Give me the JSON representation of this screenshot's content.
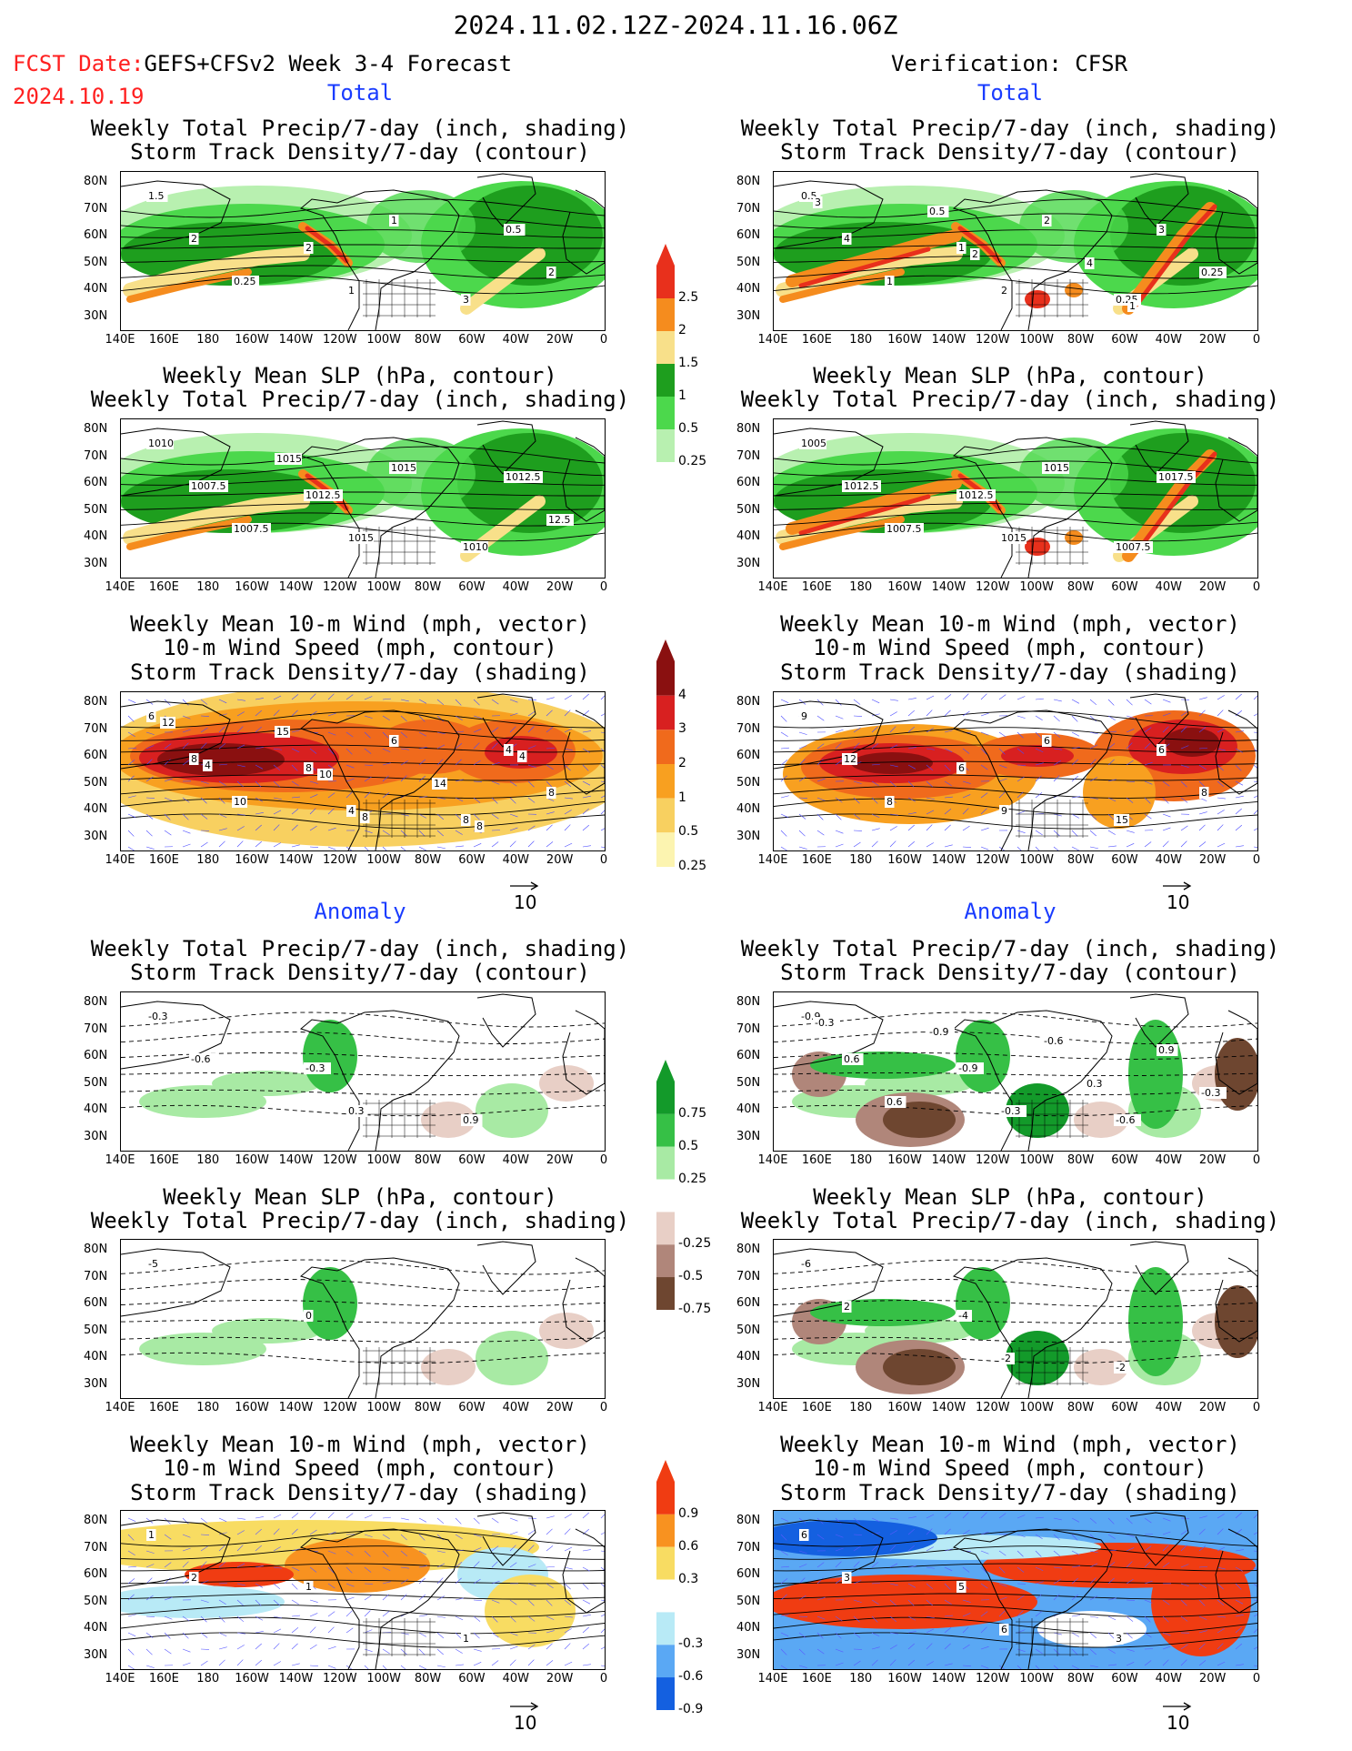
{
  "header": {
    "date_range": "2024.11.02.12Z-2024.11.16.06Z",
    "fcst_label": "FCST Date:",
    "fcst_model": "GEFS+CFSv2 Week 3-4 Forecast",
    "fcst_date": "2024.10.19",
    "verification": "Verification: CFSR"
  },
  "sections": {
    "total": "Total",
    "anomaly": "Anomaly"
  },
  "titles": {
    "precip_storm": [
      "Weekly Total Precip/7-day (inch, shading)",
      "Storm Track Density/7-day (contour)"
    ],
    "slp_precip": [
      "Weekly Mean SLP (hPa, contour)",
      "Weekly Total Precip/7-day (inch, shading)"
    ],
    "wind_storm": [
      "Weekly Mean 10-m Wind (mph, vector)",
      "10-m Wind Speed (mph, contour)",
      "Storm Track Density/7-day (shading)"
    ]
  },
  "axes": {
    "lat": [
      "80N",
      "70N",
      "60N",
      "50N",
      "40N",
      "30N"
    ],
    "lon": [
      "140E",
      "160E",
      "180",
      "160W",
      "140W",
      "120W",
      "100W",
      "80W",
      "60W",
      "40W",
      "20W",
      "0"
    ]
  },
  "vector_ref": "10",
  "colorbars": {
    "precip_total": {
      "labels": [
        "2.5",
        "2",
        "1.5",
        "1",
        "0.5",
        "0.25"
      ],
      "colors": [
        "#e8301c",
        "#f58c1e",
        "#f8e08a",
        "#1e9e1e",
        "#4cd84c",
        "#b8f0b0"
      ]
    },
    "storm_total": {
      "labels": [
        "4",
        "3",
        "2",
        "1",
        "0.5",
        "0.25"
      ],
      "colors": [
        "#8a1010",
        "#d82020",
        "#f06a1c",
        "#f8a020",
        "#f8d060",
        "#fcf4b0"
      ]
    },
    "precip_anom": {
      "labels": [
        "0.75",
        "0.5",
        "0.25",
        "-0.25",
        "-0.5",
        "-0.75"
      ],
      "colors": [
        "#139a2a",
        "#36c046",
        "#a8eaa4",
        "#ffffff",
        "#e8cfc6",
        "#b0867a",
        "#6e4630"
      ]
    },
    "storm_anom": {
      "labels": [
        "0.9",
        "0.6",
        "0.3",
        "-0.3",
        "-0.6",
        "-0.9"
      ],
      "colors": [
        "#f03c12",
        "#f89220",
        "#f8dc62",
        "#ffffff",
        "#b8eaf6",
        "#5aa8f4",
        "#1460e0"
      ]
    }
  },
  "panels": {
    "L1": {
      "labels": [
        "1.5",
        "2",
        "3",
        "2",
        "1",
        "0.5",
        "0.25",
        "1",
        "2"
      ]
    },
    "R1": {
      "labels": [
        "0.5",
        "1",
        "0.25",
        "4",
        "2",
        "3",
        "1",
        "2",
        "0.25",
        "0.5",
        "4",
        "3",
        "2",
        "1"
      ]
    },
    "L2": {
      "labels": [
        "1010",
        "1012.5",
        "1010",
        "1007.5",
        "1015",
        "1012.5",
        "1007.5",
        "1015",
        "12.5",
        "1015"
      ]
    },
    "R2": {
      "labels": [
        "1005",
        "1012.5",
        "1007.5",
        "1012.5",
        "1015",
        "1017.5",
        "1007.5",
        "1015"
      ]
    },
    "L3": {
      "labels": [
        "6",
        "8",
        "8",
        "8",
        "4",
        "4",
        "10",
        "6",
        "8",
        "15",
        "14",
        "12",
        "10",
        "8",
        "4",
        "8",
        "4"
      ]
    },
    "R3": {
      "labels": [
        "9",
        "6",
        "15",
        "12",
        "9",
        "6",
        "8",
        "6",
        "8"
      ]
    },
    "L4": {
      "labels": [
        "-0.3",
        "-0.3",
        "0.9",
        "-0.6",
        "0.3"
      ]
    },
    "R4": {
      "labels": [
        "-0.9",
        "-0.9",
        "-0.6",
        "0.6",
        "-0.3",
        "0.9",
        "0.6",
        "-0.6",
        "-0.3",
        "-0.9",
        "0.3",
        "-0.3"
      ]
    },
    "L5": {
      "labels": [
        "-5",
        "0"
      ]
    },
    "R5": {
      "labels": [
        "-6",
        "-4",
        "-2",
        "2",
        "-2"
      ]
    },
    "L6": {
      "labels": [
        "1",
        "1",
        "1",
        "2"
      ]
    },
    "R6": {
      "labels": [
        "6",
        "5",
        "3",
        "3",
        "6"
      ]
    }
  }
}
